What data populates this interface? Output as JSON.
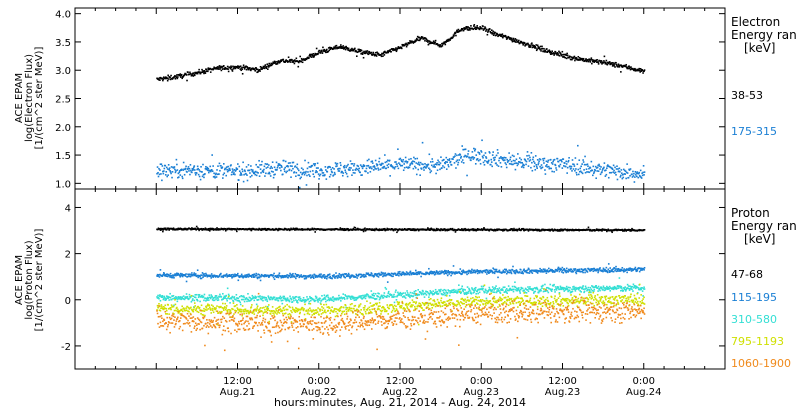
{
  "chart_data": [
    {
      "type": "scatter",
      "panel": "electron",
      "ylabel": [
        "ACE EPAM",
        "log(Electron Flux)",
        "[1/(cm^2 ster MeV)]"
      ],
      "ylim": [
        0.9,
        4.1
      ],
      "yticks": [
        "1.0",
        "1.5",
        "2.0",
        "2.5",
        "3.0",
        "3.5",
        "4.0"
      ],
      "legend_title": [
        "Electron",
        "Energy ran",
        "[keV]"
      ],
      "series": [
        {
          "name": "38-53",
          "color": "#000000",
          "x": [
            0,
            3,
            6,
            9,
            12,
            15,
            18,
            21,
            24,
            27,
            30,
            33,
            36,
            39,
            42,
            45,
            48,
            50,
            52,
            54,
            57,
            60,
            63,
            66,
            69,
            72
          ],
          "y": [
            2.85,
            2.9,
            2.97,
            3.05,
            3.07,
            3.02,
            3.18,
            3.17,
            3.33,
            3.43,
            3.34,
            3.28,
            3.42,
            3.58,
            3.45,
            3.75,
            3.76,
            3.65,
            3.58,
            3.5,
            3.38,
            3.27,
            3.2,
            3.15,
            3.08,
            2.99
          ],
          "spread": 0.04
        },
        {
          "name": "175-315",
          "color": "#1a7fd4",
          "x": [
            0,
            6,
            12,
            18,
            24,
            30,
            36,
            42,
            46,
            50,
            54,
            60,
            66,
            72
          ],
          "y": [
            1.25,
            1.25,
            1.22,
            1.28,
            1.25,
            1.28,
            1.35,
            1.32,
            1.52,
            1.45,
            1.38,
            1.35,
            1.25,
            1.18
          ],
          "spread": 0.14
        }
      ]
    },
    {
      "type": "scatter",
      "panel": "proton",
      "ylabel": [
        "ACE EPAM",
        "log(Proton Flux)",
        "[1/(cm^2 ster MeV)]"
      ],
      "ylim": [
        -3.0,
        4.8
      ],
      "yticks": [
        "-2",
        "0",
        "2",
        "4"
      ],
      "legend_title": [
        "Proton",
        "Energy ran",
        "[keV]"
      ],
      "series": [
        {
          "name": "47-68",
          "color": "#000000",
          "x": [
            0,
            72
          ],
          "y": [
            3.1,
            3.05
          ],
          "spread": 0.04
        },
        {
          "name": "115-195",
          "color": "#1a7fd4",
          "x": [
            0,
            24,
            48,
            72
          ],
          "y": [
            1.1,
            1.05,
            1.25,
            1.35
          ],
          "spread": 0.1
        },
        {
          "name": "310-580",
          "color": "#33dfd4",
          "x": [
            0,
            24,
            48,
            72
          ],
          "y": [
            0.15,
            0.05,
            0.45,
            0.55
          ],
          "spread": 0.15
        },
        {
          "name": "795-1193",
          "color": "#cfe000",
          "x": [
            0,
            24,
            48,
            72
          ],
          "y": [
            -0.35,
            -0.45,
            -0.05,
            0.05
          ],
          "spread": 0.25
        },
        {
          "name": "1060-1900",
          "color": "#f08a1c",
          "x": [
            0,
            24,
            48,
            72
          ],
          "y": [
            -0.85,
            -1.05,
            -0.55,
            -0.45
          ],
          "spread": 0.45
        }
      ]
    }
  ],
  "x_axis": {
    "range_hours": [
      -12,
      84
    ],
    "ticks": [
      {
        "hours": 12,
        "time": "12:00",
        "date": "Aug.21"
      },
      {
        "hours": 24,
        "time": "0:00",
        "date": "Aug.22"
      },
      {
        "hours": 36,
        "time": "12:00",
        "date": "Aug.22"
      },
      {
        "hours": 48,
        "time": "0:00",
        "date": "Aug.23"
      },
      {
        "hours": 60,
        "time": "12:00",
        "date": "Aug.23"
      },
      {
        "hours": 72,
        "time": "0:00",
        "date": "Aug.24"
      }
    ],
    "title": "hours:minutes, Aug. 21, 2014 - Aug. 24, 2014"
  }
}
